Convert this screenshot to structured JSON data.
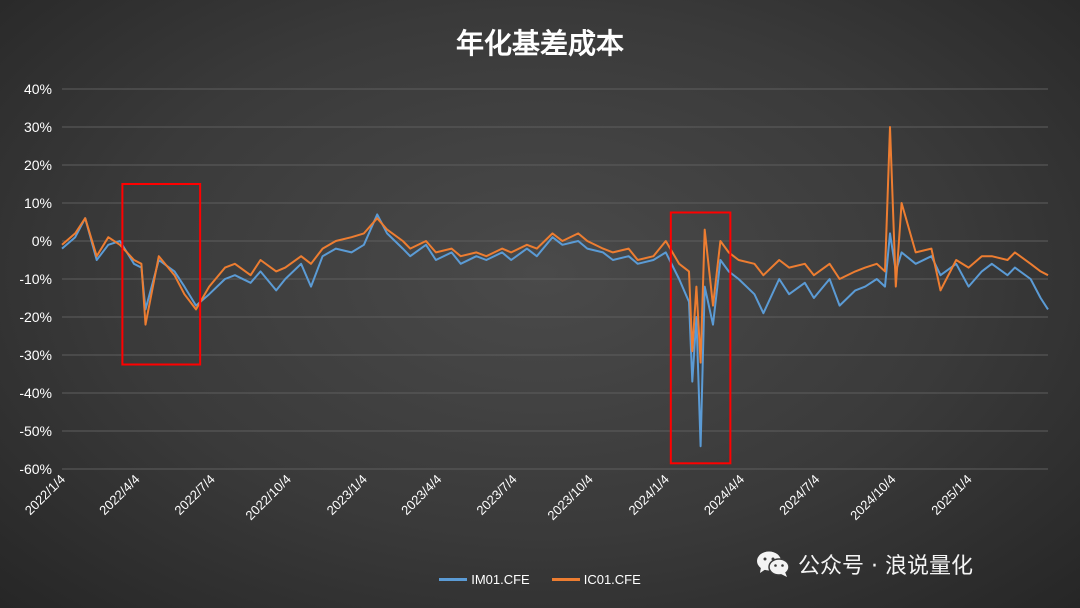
{
  "chart_data": {
    "type": "line",
    "title": "年化基差成本",
    "ylim": [
      -0.6,
      0.4
    ],
    "yticks": [
      "40%",
      "30%",
      "20%",
      "10%",
      "0%",
      "-10%",
      "-20%",
      "-30%",
      "-40%",
      "-50%",
      "-60%"
    ],
    "x_tick_labels": [
      "2022/1/4",
      "2022/4/4",
      "2022/7/4",
      "2022/10/4",
      "2023/1/4",
      "2023/4/4",
      "2023/7/4",
      "2023/10/4",
      "2024/1/4",
      "2024/4/4",
      "2024/7/4",
      "2024/10/4",
      "2025/1/4"
    ],
    "x_range": [
      "2022/1/4",
      "2025/4/10"
    ],
    "grid": true,
    "legend_position": "bottom",
    "series": [
      {
        "name": "IM01.CFE",
        "color": "#5b9bd5",
        "points": [
          [
            "2022/1/4",
            -0.02
          ],
          [
            "2022/1/20",
            0.01
          ],
          [
            "2022/2/1",
            0.06
          ],
          [
            "2022/2/15",
            -0.05
          ],
          [
            "2022/3/1",
            -0.01
          ],
          [
            "2022/3/15",
            0.0
          ],
          [
            "2022/4/1",
            -0.06
          ],
          [
            "2022/4/10",
            -0.07
          ],
          [
            "2022/4/15",
            -0.18
          ],
          [
            "2022/5/1",
            -0.05
          ],
          [
            "2022/5/20",
            -0.08
          ],
          [
            "2022/6/1",
            -0.12
          ],
          [
            "2022/6/15",
            -0.17
          ],
          [
            "2022/7/1",
            -0.14
          ],
          [
            "2022/7/20",
            -0.1
          ],
          [
            "2022/8/1",
            -0.09
          ],
          [
            "2022/8/20",
            -0.11
          ],
          [
            "2022/9/1",
            -0.08
          ],
          [
            "2022/9/20",
            -0.13
          ],
          [
            "2022/10/1",
            -0.1
          ],
          [
            "2022/10/20",
            -0.06
          ],
          [
            "2022/11/1",
            -0.12
          ],
          [
            "2022/11/15",
            -0.04
          ],
          [
            "2022/12/1",
            -0.02
          ],
          [
            "2022/12/20",
            -0.03
          ],
          [
            "2023/1/4",
            -0.01
          ],
          [
            "2023/1/20",
            0.07
          ],
          [
            "2023/2/1",
            0.02
          ],
          [
            "2023/2/20",
            -0.02
          ],
          [
            "2023/3/1",
            -0.04
          ],
          [
            "2023/3/20",
            -0.01
          ],
          [
            "2023/4/1",
            -0.05
          ],
          [
            "2023/4/20",
            -0.03
          ],
          [
            "2023/5/1",
            -0.06
          ],
          [
            "2023/5/20",
            -0.04
          ],
          [
            "2023/6/1",
            -0.05
          ],
          [
            "2023/6/20",
            -0.03
          ],
          [
            "2023/7/1",
            -0.05
          ],
          [
            "2023/7/20",
            -0.02
          ],
          [
            "2023/8/1",
            -0.04
          ],
          [
            "2023/8/20",
            0.01
          ],
          [
            "2023/9/1",
            -0.01
          ],
          [
            "2023/9/20",
            0.0
          ],
          [
            "2023/10/1",
            -0.02
          ],
          [
            "2023/10/20",
            -0.03
          ],
          [
            "2023/11/1",
            -0.05
          ],
          [
            "2023/11/20",
            -0.04
          ],
          [
            "2023/12/1",
            -0.06
          ],
          [
            "2023/12/20",
            -0.05
          ],
          [
            "2024/1/4",
            -0.03
          ],
          [
            "2024/1/20",
            -0.1
          ],
          [
            "2024/2/1",
            -0.16
          ],
          [
            "2024/2/5",
            -0.37
          ],
          [
            "2024/2/10",
            -0.2
          ],
          [
            "2024/2/15",
            -0.54
          ],
          [
            "2024/2/20",
            -0.12
          ],
          [
            "2024/3/1",
            -0.22
          ],
          [
            "2024/3/10",
            -0.05
          ],
          [
            "2024/3/20",
            -0.08
          ],
          [
            "2024/4/1",
            -0.1
          ],
          [
            "2024/4/20",
            -0.14
          ],
          [
            "2024/5/1",
            -0.19
          ],
          [
            "2024/5/20",
            -0.1
          ],
          [
            "2024/6/1",
            -0.14
          ],
          [
            "2024/6/20",
            -0.11
          ],
          [
            "2024/7/1",
            -0.15
          ],
          [
            "2024/7/20",
            -0.1
          ],
          [
            "2024/8/1",
            -0.17
          ],
          [
            "2024/8/20",
            -0.13
          ],
          [
            "2024/9/1",
            -0.12
          ],
          [
            "2024/9/15",
            -0.1
          ],
          [
            "2024/9/25",
            -0.12
          ],
          [
            "2024/10/1",
            0.02
          ],
          [
            "2024/10/8",
            -0.08
          ],
          [
            "2024/10/15",
            -0.03
          ],
          [
            "2024/11/1",
            -0.06
          ],
          [
            "2024/11/20",
            -0.04
          ],
          [
            "2024/12/1",
            -0.09
          ],
          [
            "2024/12/20",
            -0.06
          ],
          [
            "2025/1/4",
            -0.12
          ],
          [
            "2025/1/20",
            -0.08
          ],
          [
            "2025/2/1",
            -0.06
          ],
          [
            "2025/2/20",
            -0.09
          ],
          [
            "2025/3/1",
            -0.07
          ],
          [
            "2025/3/20",
            -0.1
          ],
          [
            "2025/4/1",
            -0.15
          ],
          [
            "2025/4/10",
            -0.18
          ]
        ]
      },
      {
        "name": "IC01.CFE",
        "color": "#ed7d31",
        "points": [
          [
            "2022/1/4",
            -0.01
          ],
          [
            "2022/1/20",
            0.02
          ],
          [
            "2022/2/1",
            0.06
          ],
          [
            "2022/2/15",
            -0.04
          ],
          [
            "2022/3/1",
            0.01
          ],
          [
            "2022/3/15",
            -0.01
          ],
          [
            "2022/4/1",
            -0.05
          ],
          [
            "2022/4/10",
            -0.06
          ],
          [
            "2022/4/15",
            -0.22
          ],
          [
            "2022/5/1",
            -0.04
          ],
          [
            "2022/5/20",
            -0.09
          ],
          [
            "2022/6/1",
            -0.14
          ],
          [
            "2022/6/15",
            -0.18
          ],
          [
            "2022/7/1",
            -0.12
          ],
          [
            "2022/7/20",
            -0.07
          ],
          [
            "2022/8/1",
            -0.06
          ],
          [
            "2022/8/20",
            -0.09
          ],
          [
            "2022/9/1",
            -0.05
          ],
          [
            "2022/9/20",
            -0.08
          ],
          [
            "2022/10/1",
            -0.07
          ],
          [
            "2022/10/20",
            -0.04
          ],
          [
            "2022/11/1",
            -0.06
          ],
          [
            "2022/11/15",
            -0.02
          ],
          [
            "2022/12/1",
            0.0
          ],
          [
            "2022/12/20",
            0.01
          ],
          [
            "2023/1/4",
            0.02
          ],
          [
            "2023/1/20",
            0.06
          ],
          [
            "2023/2/1",
            0.03
          ],
          [
            "2023/2/20",
            0.0
          ],
          [
            "2023/3/1",
            -0.02
          ],
          [
            "2023/3/20",
            0.0
          ],
          [
            "2023/4/1",
            -0.03
          ],
          [
            "2023/4/20",
            -0.02
          ],
          [
            "2023/5/1",
            -0.04
          ],
          [
            "2023/5/20",
            -0.03
          ],
          [
            "2023/6/1",
            -0.04
          ],
          [
            "2023/6/20",
            -0.02
          ],
          [
            "2023/7/1",
            -0.03
          ],
          [
            "2023/7/20",
            -0.01
          ],
          [
            "2023/8/1",
            -0.02
          ],
          [
            "2023/8/20",
            0.02
          ],
          [
            "2023/9/1",
            0.0
          ],
          [
            "2023/9/20",
            0.02
          ],
          [
            "2023/10/1",
            0.0
          ],
          [
            "2023/10/20",
            -0.02
          ],
          [
            "2023/11/1",
            -0.03
          ],
          [
            "2023/11/20",
            -0.02
          ],
          [
            "2023/12/1",
            -0.05
          ],
          [
            "2023/12/20",
            -0.04
          ],
          [
            "2024/1/4",
            0.0
          ],
          [
            "2024/1/20",
            -0.06
          ],
          [
            "2024/2/1",
            -0.08
          ],
          [
            "2024/2/5",
            -0.29
          ],
          [
            "2024/2/10",
            -0.12
          ],
          [
            "2024/2/15",
            -0.32
          ],
          [
            "2024/2/20",
            0.03
          ],
          [
            "2024/3/1",
            -0.17
          ],
          [
            "2024/3/10",
            0.0
          ],
          [
            "2024/3/20",
            -0.03
          ],
          [
            "2024/4/1",
            -0.05
          ],
          [
            "2024/4/20",
            -0.06
          ],
          [
            "2024/5/1",
            -0.09
          ],
          [
            "2024/5/20",
            -0.05
          ],
          [
            "2024/6/1",
            -0.07
          ],
          [
            "2024/6/20",
            -0.06
          ],
          [
            "2024/7/1",
            -0.09
          ],
          [
            "2024/7/20",
            -0.06
          ],
          [
            "2024/8/1",
            -0.1
          ],
          [
            "2024/8/20",
            -0.08
          ],
          [
            "2024/9/1",
            -0.07
          ],
          [
            "2024/9/15",
            -0.06
          ],
          [
            "2024/9/25",
            -0.08
          ],
          [
            "2024/10/1",
            0.3
          ],
          [
            "2024/10/8",
            -0.12
          ],
          [
            "2024/10/15",
            0.1
          ],
          [
            "2024/11/1",
            -0.03
          ],
          [
            "2024/11/20",
            -0.02
          ],
          [
            "2024/12/1",
            -0.13
          ],
          [
            "2024/12/20",
            -0.05
          ],
          [
            "2025/1/4",
            -0.07
          ],
          [
            "2025/1/20",
            -0.04
          ],
          [
            "2025/2/1",
            -0.04
          ],
          [
            "2025/2/20",
            -0.05
          ],
          [
            "2025/3/1",
            -0.03
          ],
          [
            "2025/3/20",
            -0.06
          ],
          [
            "2025/4/1",
            -0.08
          ],
          [
            "2025/4/10",
            -0.09
          ]
        ]
      }
    ],
    "highlight_boxes": [
      {
        "x0": "2022/3/18",
        "x1": "2022/6/20",
        "y0": -0.325,
        "y1": 0.15
      },
      {
        "x0": "2024/1/10",
        "x1": "2024/3/22",
        "y0": -0.585,
        "y1": 0.075
      }
    ],
    "highlight_color": "#ff0000"
  },
  "watermark": {
    "text": "公众号 · 浪说量化",
    "icon": "wechat-icon"
  }
}
